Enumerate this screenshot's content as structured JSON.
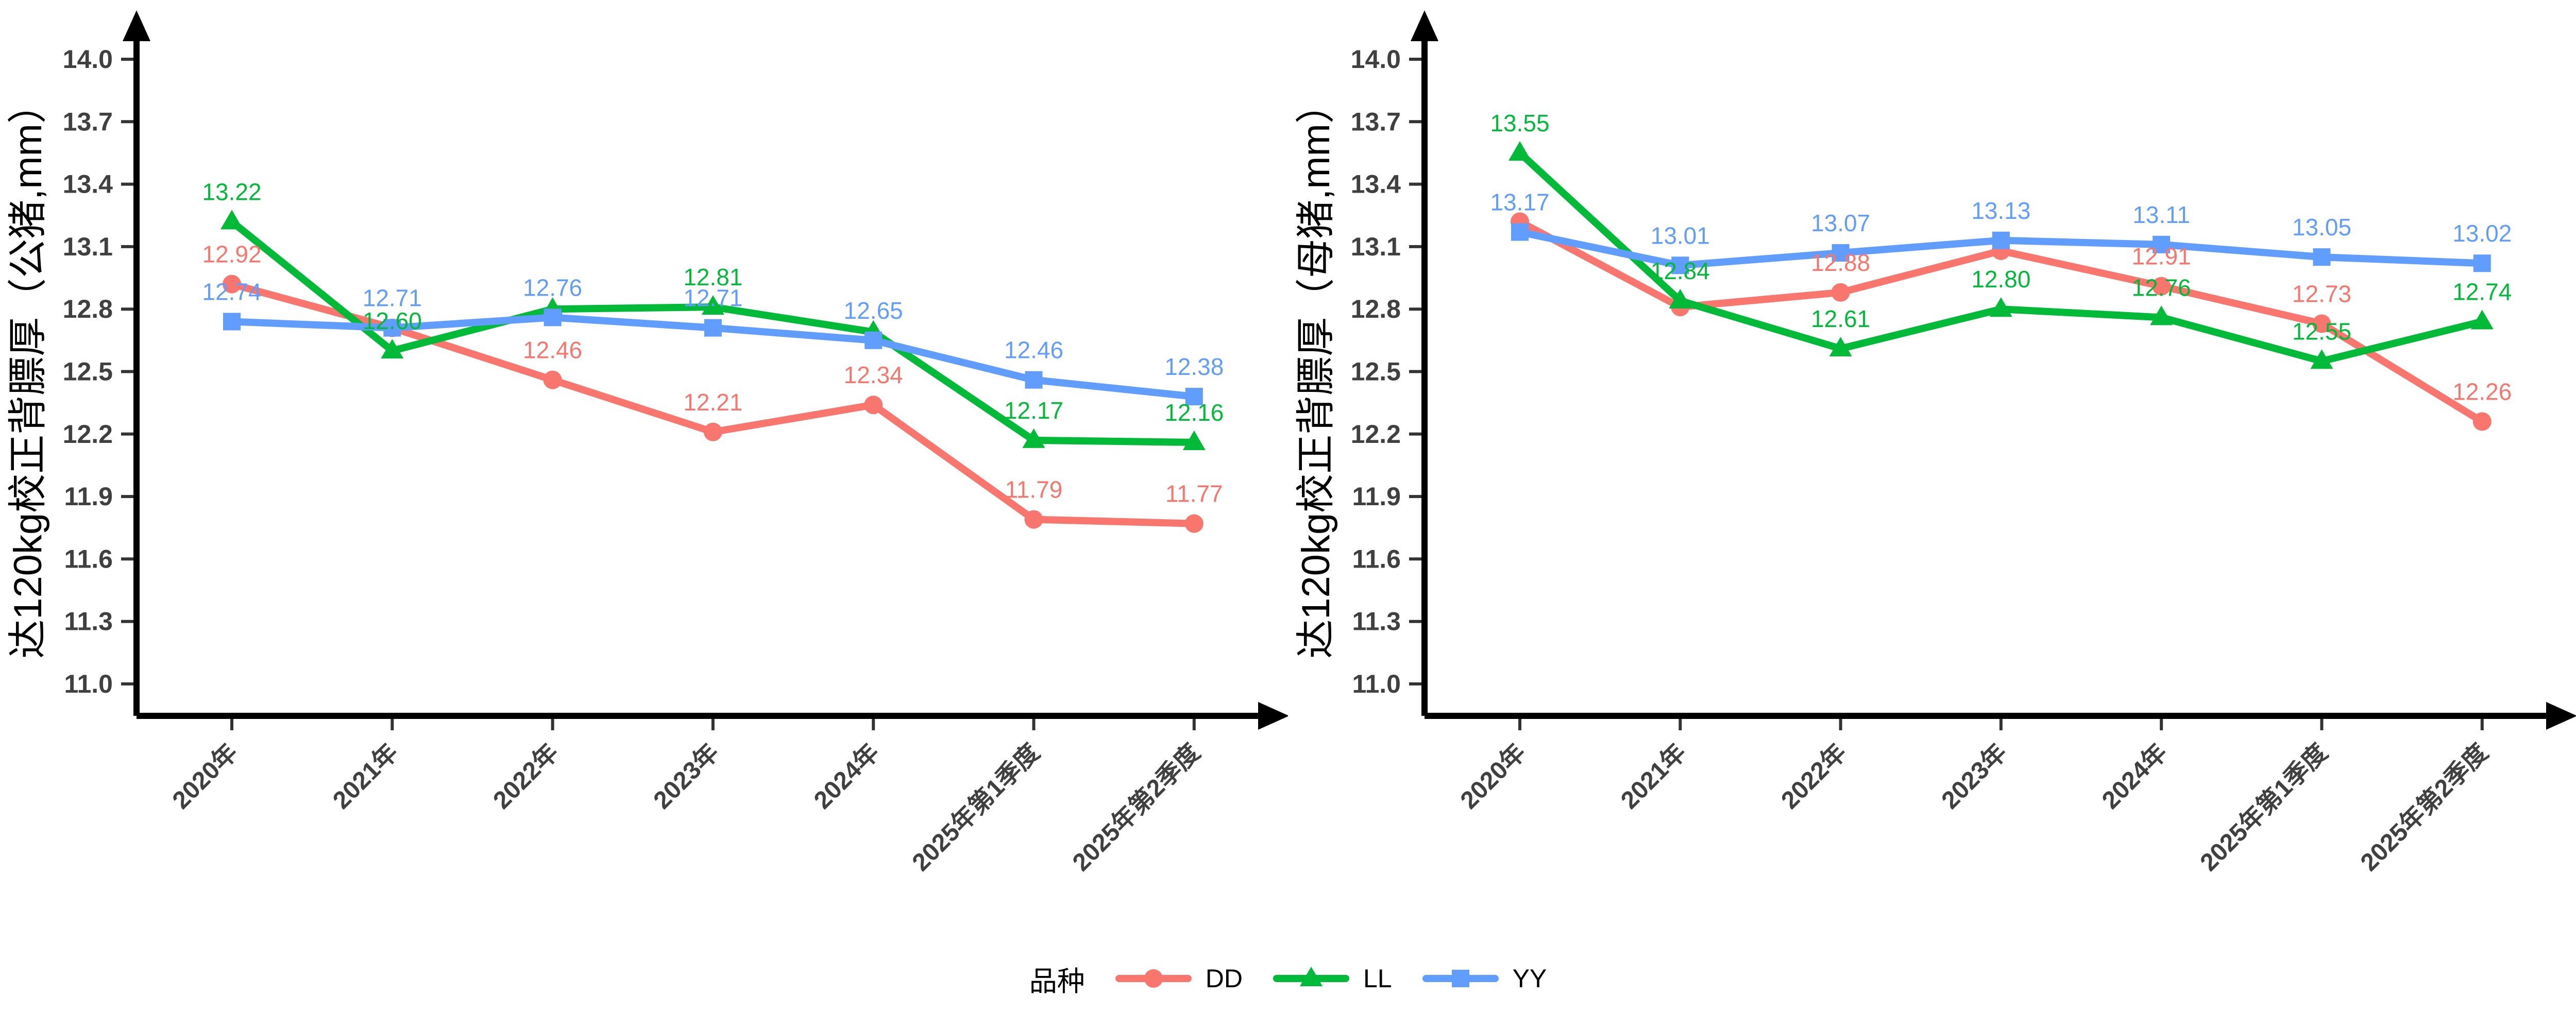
{
  "colors": {
    "DD": "#F8766D",
    "LL": "#00BA38",
    "YY": "#619CFF",
    "axis_line": "#000000",
    "axis_text": "#404040",
    "background": "#ffffff"
  },
  "legend": {
    "title": "品种",
    "entries": [
      {
        "name": "DD",
        "marker": "circle",
        "color": "#F8766D"
      },
      {
        "name": "LL",
        "marker": "triangle",
        "color": "#00BA38"
      },
      {
        "name": "YY",
        "marker": "square",
        "color": "#619CFF"
      }
    ]
  },
  "chart_data": [
    {
      "id": "boar",
      "type": "line",
      "title": "",
      "xlabel": "",
      "ylabel": "达120kg校正背膘厚（公猪,mm）",
      "ylim": [
        11.0,
        14.0
      ],
      "yticks": [
        14.0,
        13.7,
        13.4,
        13.1,
        12.8,
        12.5,
        12.2,
        11.9,
        11.6,
        11.3,
        11.0
      ],
      "grid": false,
      "categories": [
        "2020年",
        "2021年",
        "2022年",
        "2023年",
        "2024年",
        "2025年第1季度",
        "2025年第2季度"
      ],
      "series": [
        {
          "name": "DD",
          "marker": "circle",
          "values": [
            12.92,
            12.71,
            12.46,
            12.21,
            12.34,
            11.79,
            11.77
          ],
          "labels": [
            "12.92",
            null,
            "12.46",
            "12.21",
            "12.34",
            "11.79",
            "11.77"
          ]
        },
        {
          "name": "LL",
          "marker": "triangle",
          "values": [
            13.22,
            12.6,
            12.8,
            12.81,
            12.69,
            12.17,
            12.16
          ],
          "labels": [
            "13.22",
            "12.60",
            null,
            "12.81",
            null,
            "12.17",
            "12.16"
          ]
        },
        {
          "name": "YY",
          "marker": "square",
          "values": [
            12.74,
            12.71,
            12.76,
            12.71,
            12.65,
            12.46,
            12.38
          ],
          "labels": [
            "12.74",
            "12.71",
            "12.76",
            "12.71",
            "12.65",
            "12.46",
            "12.38"
          ]
        }
      ]
    },
    {
      "id": "sow",
      "type": "line",
      "title": "",
      "xlabel": "",
      "ylabel": "达120kg校正背膘厚（母猪,mm）",
      "ylim": [
        11.0,
        14.0
      ],
      "yticks": [
        14.0,
        13.7,
        13.4,
        13.1,
        12.8,
        12.5,
        12.2,
        11.9,
        11.6,
        11.3,
        11.0
      ],
      "grid": false,
      "categories": [
        "2020年",
        "2021年",
        "2022年",
        "2023年",
        "2024年",
        "2025年第1季度",
        "2025年第2季度"
      ],
      "series": [
        {
          "name": "DD",
          "marker": "circle",
          "values": [
            13.22,
            12.81,
            12.88,
            13.08,
            12.91,
            12.73,
            12.26
          ],
          "labels": [
            null,
            null,
            "12.88",
            null,
            "12.91",
            "12.73",
            "12.26"
          ]
        },
        {
          "name": "LL",
          "marker": "triangle",
          "values": [
            13.55,
            12.84,
            12.61,
            12.8,
            12.76,
            12.55,
            12.74
          ],
          "labels": [
            "13.55",
            "12.84",
            "12.61",
            "12.80",
            "12.76",
            "12.55",
            "12.74"
          ]
        },
        {
          "name": "YY",
          "marker": "square",
          "values": [
            13.17,
            13.01,
            13.07,
            13.13,
            13.11,
            13.05,
            13.02
          ],
          "labels": [
            "13.17",
            "13.01",
            "13.07",
            "13.13",
            "13.11",
            "13.05",
            "13.02"
          ]
        }
      ]
    }
  ]
}
